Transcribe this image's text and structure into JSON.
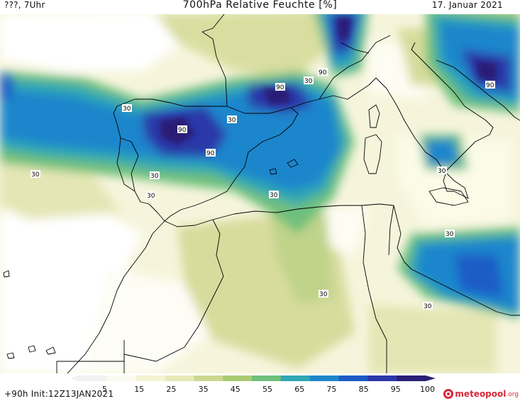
{
  "header": {
    "time_label": "???, 7Uhr",
    "title": "700hPa Relative Feuchte [%]",
    "date": "17. Januar 2021"
  },
  "footer": {
    "run_info": "+90h Init:12Z13JAN2021",
    "logo_main": "meteopool",
    "logo_tld": ".org"
  },
  "legend": {
    "ticks": [
      "5",
      "15",
      "25",
      "35",
      "45",
      "55",
      "65",
      "75",
      "85",
      "95",
      "100"
    ],
    "colors": [
      "#f2f2f2",
      "#fbfaf0",
      "#f4f3d2",
      "#e8e9b8",
      "#ccd88f",
      "#a9cb72",
      "#6fc07b",
      "#2fa8b4",
      "#1f86cc",
      "#1c5bc6",
      "#2b37a8",
      "#2a1f76"
    ]
  },
  "contour_labels": [
    {
      "text": "90"
    },
    {
      "text": "90"
    },
    {
      "text": "90"
    },
    {
      "text": "90"
    },
    {
      "text": "90"
    },
    {
      "text": "30"
    },
    {
      "text": "30"
    },
    {
      "text": "30"
    },
    {
      "text": "30"
    },
    {
      "text": "30"
    },
    {
      "text": "30"
    },
    {
      "text": "30"
    },
    {
      "text": "30"
    },
    {
      "text": "30"
    },
    {
      "text": "30"
    },
    {
      "text": "30"
    }
  ]
}
